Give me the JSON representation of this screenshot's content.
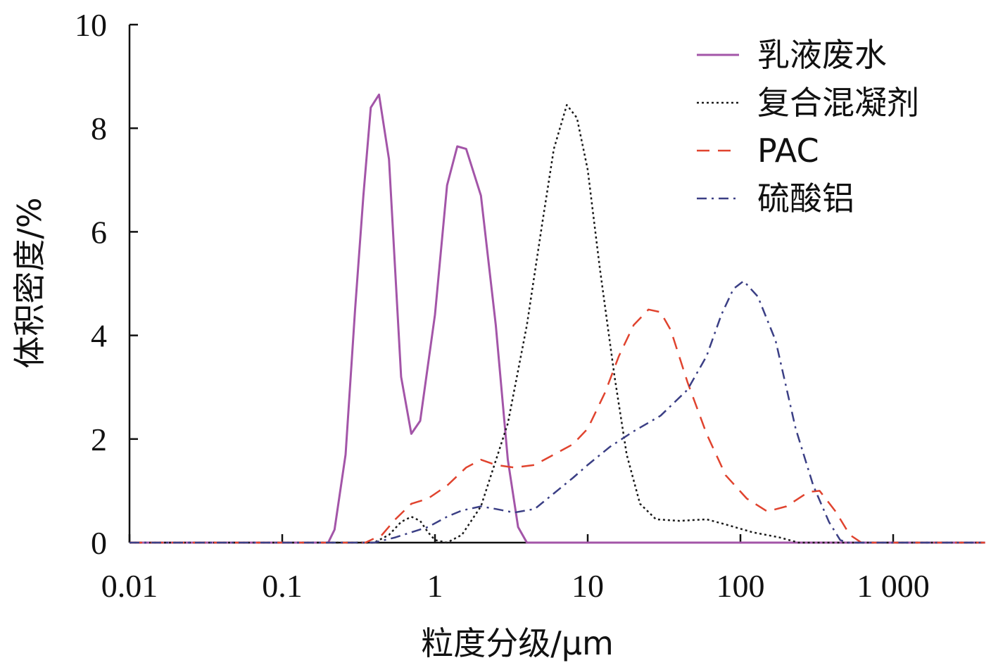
{
  "chart_data": {
    "type": "line",
    "title": "",
    "xlabel": "粒度分级/μm",
    "ylabel": "体积密度/%",
    "x_scale": "log",
    "xlim": [
      0.01,
      4000
    ],
    "ylim": [
      0,
      10
    ],
    "x_ticks": [
      0.01,
      0.1,
      1,
      10,
      100,
      1000
    ],
    "x_tick_labels": [
      "0.01",
      "0.1",
      "1",
      "10",
      "100",
      "1 000"
    ],
    "y_ticks": [
      0,
      2,
      4,
      6,
      8,
      10
    ],
    "y_tick_labels": [
      "0",
      "2",
      "4",
      "6",
      "8",
      "10"
    ],
    "grid": false,
    "legend_position": "top-right",
    "series": [
      {
        "name": "乳液废水",
        "color": "#a355a8",
        "dash": "solid",
        "points": [
          [
            0.01,
            0
          ],
          [
            0.2,
            0
          ],
          [
            0.22,
            0.25
          ],
          [
            0.26,
            1.7
          ],
          [
            0.3,
            4.5
          ],
          [
            0.34,
            6.7
          ],
          [
            0.38,
            8.4
          ],
          [
            0.43,
            8.65
          ],
          [
            0.5,
            7.4
          ],
          [
            0.6,
            3.2
          ],
          [
            0.7,
            2.1
          ],
          [
            0.8,
            2.35
          ],
          [
            1.0,
            4.4
          ],
          [
            1.2,
            6.9
          ],
          [
            1.4,
            7.65
          ],
          [
            1.6,
            7.6
          ],
          [
            2.0,
            6.7
          ],
          [
            2.5,
            4.2
          ],
          [
            3.0,
            1.6
          ],
          [
            3.5,
            0.3
          ],
          [
            4.0,
            0
          ],
          [
            4000,
            0
          ]
        ]
      },
      {
        "name": "复合混凝剂",
        "color": "#1a1a1a",
        "dash": "dotted",
        "points": [
          [
            0.01,
            0
          ],
          [
            0.4,
            0
          ],
          [
            0.5,
            0.15
          ],
          [
            0.6,
            0.4
          ],
          [
            0.7,
            0.5
          ],
          [
            0.8,
            0.42
          ],
          [
            0.9,
            0.2
          ],
          [
            1.0,
            0.05
          ],
          [
            1.2,
            0
          ],
          [
            1.5,
            0.15
          ],
          [
            2.0,
            0.7
          ],
          [
            3.0,
            2.3
          ],
          [
            4.0,
            4.2
          ],
          [
            5.0,
            6.1
          ],
          [
            6.0,
            7.6
          ],
          [
            7.3,
            8.45
          ],
          [
            8.5,
            8.2
          ],
          [
            10,
            7.2
          ],
          [
            12,
            5.3
          ],
          [
            15,
            3.2
          ],
          [
            18,
            1.7
          ],
          [
            22,
            0.75
          ],
          [
            28,
            0.45
          ],
          [
            40,
            0.42
          ],
          [
            60,
            0.45
          ],
          [
            80,
            0.35
          ],
          [
            120,
            0.2
          ],
          [
            180,
            0.1
          ],
          [
            240,
            0
          ],
          [
            4000,
            0
          ]
        ]
      },
      {
        "name": "PAC",
        "color": "#e0432e",
        "dash": "dashed",
        "points": [
          [
            0.01,
            0
          ],
          [
            0.35,
            0
          ],
          [
            0.45,
            0.15
          ],
          [
            0.55,
            0.45
          ],
          [
            0.7,
            0.75
          ],
          [
            0.9,
            0.85
          ],
          [
            1.2,
            1.1
          ],
          [
            1.6,
            1.45
          ],
          [
            2.0,
            1.6
          ],
          [
            2.5,
            1.5
          ],
          [
            3.3,
            1.45
          ],
          [
            4.5,
            1.5
          ],
          [
            6,
            1.7
          ],
          [
            8,
            1.9
          ],
          [
            10,
            2.2
          ],
          [
            13,
            2.9
          ],
          [
            16,
            3.6
          ],
          [
            20,
            4.2
          ],
          [
            25,
            4.5
          ],
          [
            30,
            4.45
          ],
          [
            35,
            4.1
          ],
          [
            45,
            3.1
          ],
          [
            60,
            2.1
          ],
          [
            80,
            1.3
          ],
          [
            110,
            0.85
          ],
          [
            150,
            0.6
          ],
          [
            200,
            0.7
          ],
          [
            280,
            0.98
          ],
          [
            330,
            1.0
          ],
          [
            420,
            0.6
          ],
          [
            520,
            0.15
          ],
          [
            620,
            0
          ],
          [
            4000,
            0
          ]
        ]
      },
      {
        "name": "硫酸铝",
        "color": "#3b3f85",
        "dash": "dashdot",
        "points": [
          [
            0.01,
            0
          ],
          [
            0.4,
            0
          ],
          [
            0.55,
            0.1
          ],
          [
            0.7,
            0.2
          ],
          [
            0.9,
            0.3
          ],
          [
            1.2,
            0.5
          ],
          [
            1.5,
            0.62
          ],
          [
            2.0,
            0.7
          ],
          [
            2.5,
            0.65
          ],
          [
            3.3,
            0.58
          ],
          [
            4.5,
            0.65
          ],
          [
            6,
            0.95
          ],
          [
            8,
            1.25
          ],
          [
            10,
            1.5
          ],
          [
            14,
            1.85
          ],
          [
            20,
            2.15
          ],
          [
            30,
            2.45
          ],
          [
            45,
            2.95
          ],
          [
            60,
            3.6
          ],
          [
            75,
            4.4
          ],
          [
            90,
            4.9
          ],
          [
            105,
            5.05
          ],
          [
            130,
            4.75
          ],
          [
            170,
            3.9
          ],
          [
            230,
            2.2
          ],
          [
            300,
            1.1
          ],
          [
            380,
            0.4
          ],
          [
            450,
            0.05
          ],
          [
            500,
            0
          ],
          [
            4000,
            0
          ]
        ]
      }
    ]
  }
}
